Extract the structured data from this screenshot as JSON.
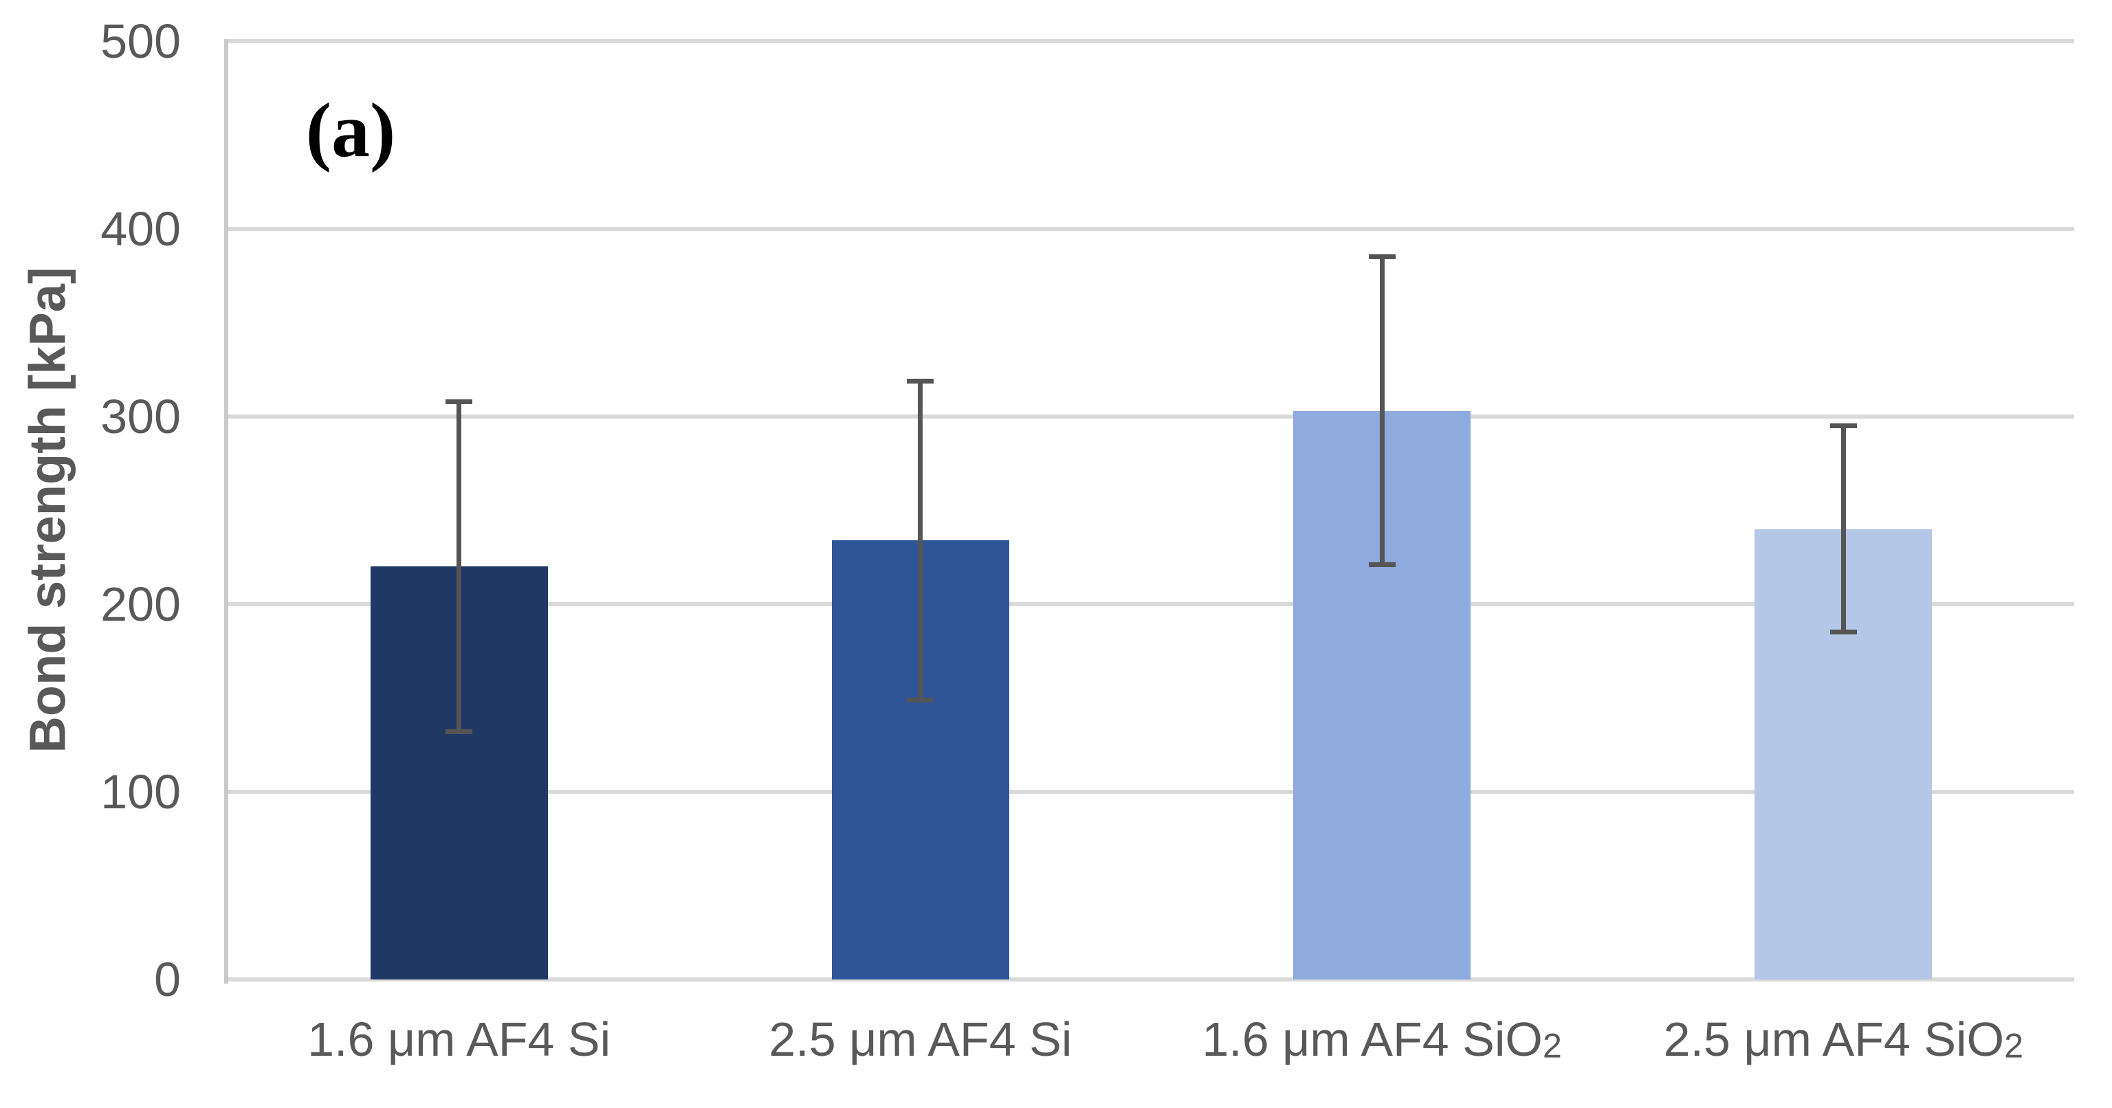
{
  "panel_label": "(a)",
  "chart_data": {
    "type": "bar",
    "title": "",
    "xlabel": "",
    "ylabel": "Bond strength [kPa]",
    "panel_label": "(a)",
    "categories": [
      "1.6 μm AF4 Si",
      "2.5 μm AF4 Si",
      "1.6 μm AF4 SiO2",
      "2.5 μm AF4 SiO2"
    ],
    "categories_rich": [
      {
        "text": "1.6 μm AF4 Si",
        "sub": ""
      },
      {
        "text": "2.5 μm AF4 Si",
        "sub": ""
      },
      {
        "text": "1.6 μm AF4 SiO",
        "sub": "2"
      },
      {
        "text": "2.5 μm AF4 SiO",
        "sub": "2"
      }
    ],
    "values": [
      220,
      234,
      303,
      240
    ],
    "error_bars": [
      88,
      85,
      82,
      55
    ],
    "ylim": [
      0,
      500
    ],
    "y_ticks": [
      0,
      100,
      200,
      300,
      400,
      500
    ],
    "grid": true,
    "legend": false,
    "bar_colors": [
      "#203864",
      "#2F5597",
      "#8FAADC",
      "#B4C7E7"
    ],
    "error_bar_color": "#555555",
    "gridline_color": "#D9D9D9",
    "axis_line_color": "#C9C9C9",
    "tick_label_color": "#595959",
    "category_label_color": "#595959",
    "ylabel_color": "#595959",
    "panel_label_color": "#000000"
  }
}
